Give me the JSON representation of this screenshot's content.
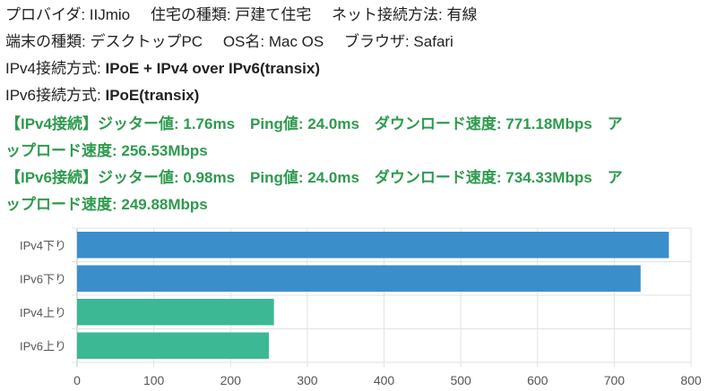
{
  "info": {
    "row1": [
      {
        "label": "プロバイダ",
        "value": "IIJmio"
      },
      {
        "label": "住宅の種類",
        "value": "戸建て住宅"
      },
      {
        "label": "ネット接続方法",
        "value": "有線"
      }
    ],
    "row2": [
      {
        "label": "端末の種類",
        "value": "デスクトップPC"
      },
      {
        "label": "OS名",
        "value": "Mac OS"
      },
      {
        "label": "ブラウザ",
        "value": "Safari"
      }
    ],
    "ipv4_method": {
      "label": "IPv4接続方式",
      "value": "IPoE + IPv4 over IPv6(transix)"
    },
    "ipv6_method": {
      "label": "IPv6接続方式",
      "value": "IPoE(transix)"
    }
  },
  "results": {
    "ipv4": {
      "prefix": "【IPv4接続】",
      "line1": "ジッター値: 1.76ms　Ping値: 24.0ms　ダウンロード速度: 771.18Mbps　ア",
      "line2": "ップロード速度: 256.53Mbps"
    },
    "ipv6": {
      "prefix": "【IPv6接続】",
      "line1": "ジッター値: 0.98ms　Ping値: 24.0ms　ダウンロード速度: 734.33Mbps　ア",
      "line2": "ップロード速度: 249.88Mbps"
    }
  },
  "colors": {
    "result_text": "#2e9a4e",
    "download_bar": "#3a8fcb",
    "upload_bar": "#3cb895",
    "grid": "#e2e2e2"
  },
  "chart_data": {
    "type": "bar",
    "orientation": "horizontal",
    "categories": [
      "IPv4下り",
      "IPv6下り",
      "IPv4上り",
      "IPv6上り"
    ],
    "values": [
      771.18,
      734.33,
      256.53,
      249.88
    ],
    "bar_colors": [
      "#3a8fcb",
      "#3a8fcb",
      "#3cb895",
      "#3cb895"
    ],
    "title": "",
    "xlabel": "",
    "ylabel": "",
    "xlim": [
      0,
      800
    ],
    "xticks": [
      0,
      100,
      200,
      300,
      400,
      500,
      600,
      700,
      800
    ],
    "grid": true,
    "legend": "none"
  }
}
